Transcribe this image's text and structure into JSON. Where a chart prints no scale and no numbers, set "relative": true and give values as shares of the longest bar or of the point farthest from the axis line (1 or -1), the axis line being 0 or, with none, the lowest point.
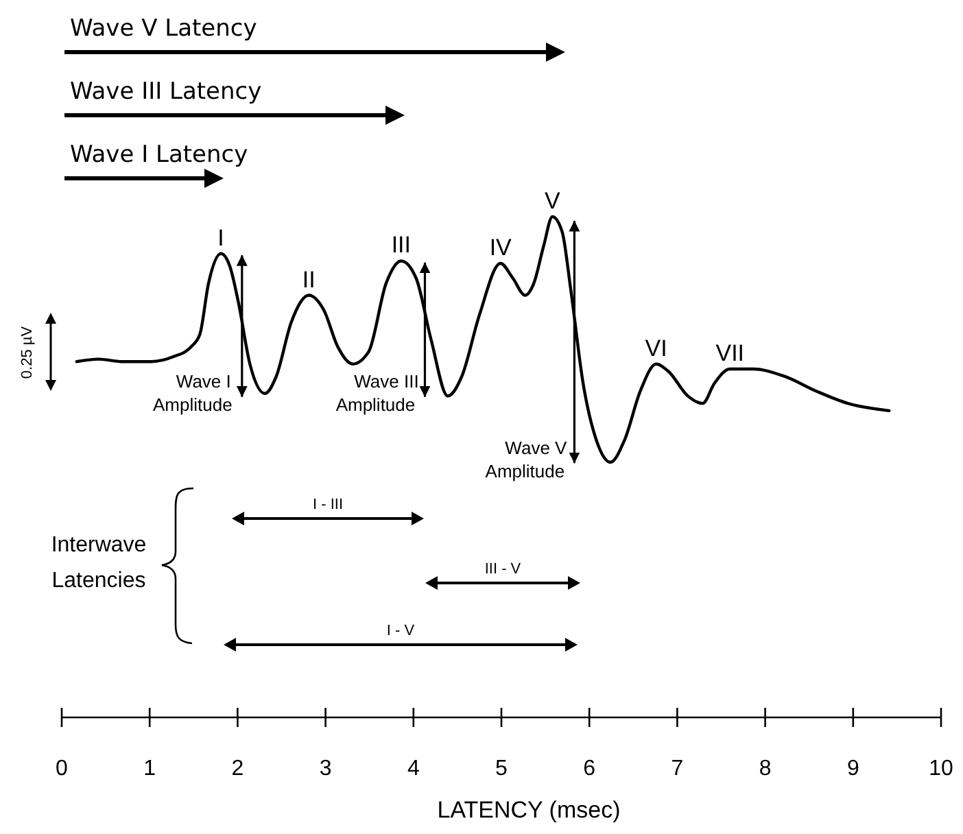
{
  "chart_data": {
    "type": "line",
    "relative": true,
    "xlabel": "LATENCY (msec)",
    "xlim": [
      0,
      10
    ],
    "xticks": [
      0,
      1,
      2,
      3,
      4,
      5,
      6,
      7,
      8,
      9,
      10
    ],
    "grid": false,
    "series": [
      {
        "color": "#000000",
        "x": [
          0.17,
          0.42,
          0.68,
          1.02,
          1.27,
          1.47,
          1.57,
          1.67,
          1.81,
          1.91,
          2.01,
          2.14,
          2.31,
          2.44,
          2.61,
          2.81,
          2.98,
          3.14,
          3.31,
          3.49,
          3.69,
          3.86,
          4.03,
          4.2,
          4.39,
          4.55,
          4.75,
          4.99,
          5.13,
          5.27,
          5.37,
          5.48,
          5.58,
          5.69,
          5.79,
          5.93,
          6.08,
          6.24,
          6.4,
          6.58,
          6.76,
          6.9,
          7.12,
          7.29,
          7.42,
          7.6,
          7.86,
          8.22,
          8.58,
          8.94,
          9.41
        ],
        "values": [
          0.41,
          0.42,
          0.41,
          0.41,
          0.43,
          0.47,
          0.52,
          0.73,
          0.85,
          0.8,
          0.65,
          0.4,
          0.28,
          0.35,
          0.57,
          0.68,
          0.62,
          0.47,
          0.4,
          0.45,
          0.73,
          0.82,
          0.75,
          0.5,
          0.27,
          0.35,
          0.6,
          0.81,
          0.75,
          0.68,
          0.73,
          0.88,
          1,
          0.94,
          0.7,
          0.32,
          0.09,
          0,
          0.09,
          0.29,
          0.4,
          0.37,
          0.27,
          0.24,
          0.32,
          0.38,
          0.38,
          0.35,
          0.29,
          0.24,
          0.21
        ]
      },
      {
        "type": "line",
        "color": "#000000",
        "x": [
          2.05,
          2.05
        ],
        "values": [
          0.84,
          0.27
        ]
      },
      {
        "type": "line",
        "color": "#000000",
        "x": [
          4.13,
          4.13
        ],
        "values": [
          0.81,
          0.27
        ]
      },
      {
        "type": "line",
        "color": "#000000",
        "x": [
          5.83,
          5.83
        ],
        "values": [
          0.98,
          0
        ]
      }
    ],
    "annotations": [
      {
        "text": "I",
        "x": 1.81,
        "y": 0.85
      },
      {
        "text": "II",
        "x": 2.81,
        "y": 0.68
      },
      {
        "text": "III",
        "x": 3.86,
        "y": 0.82
      },
      {
        "text": "IV",
        "x": 4.99,
        "y": 0.81
      },
      {
        "text": "V",
        "x": 5.58,
        "y": 1
      },
      {
        "text": "VI",
        "x": 6.76,
        "y": 0.4
      },
      {
        "text": "VII",
        "x": 7.6,
        "y": 0.38
      },
      {
        "text": "Wave I Amplitude",
        "x": 2.05,
        "y": 0.27
      },
      {
        "text": "Wave III Amplitude",
        "x": 4.13,
        "y": 0.27
      },
      {
        "text": "Wave V Amplitude",
        "x": 5.83,
        "y": 0
      },
      "Wave V Latency",
      "Wave III Latency",
      "Wave I Latency",
      "I - III",
      "III - V",
      "I - V",
      "Interwave Latencies",
      "0.25 µV"
    ]
  }
}
